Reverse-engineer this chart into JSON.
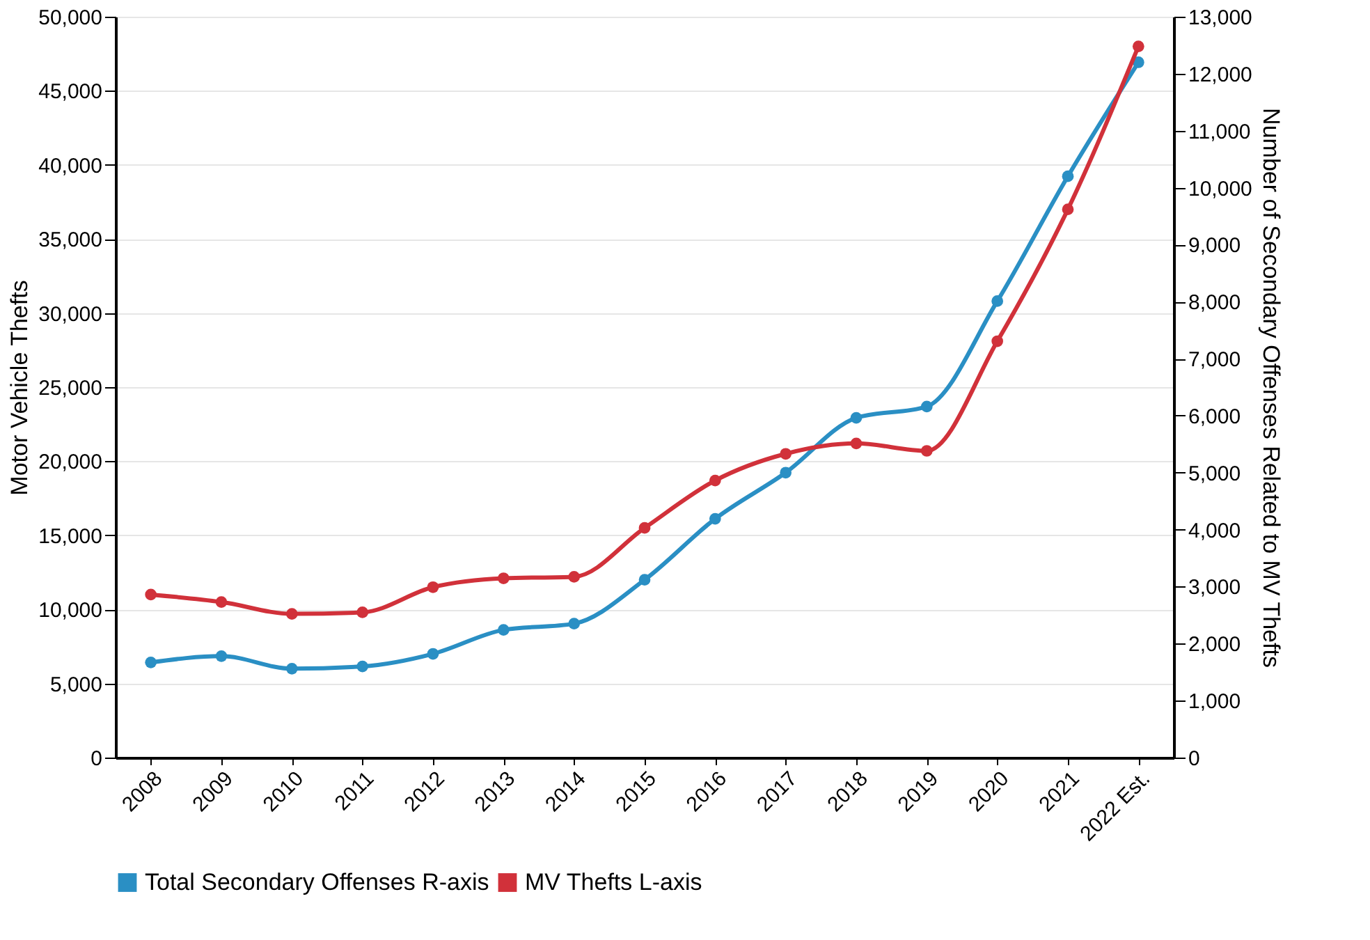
{
  "chart_data": {
    "type": "line",
    "xlabel": null,
    "ylabel": "Motor Vehicle Thefts",
    "y2label": "Number of Secondary Offenses Related to MV Thefts",
    "categories": [
      "2008",
      "2009",
      "2010",
      "2011",
      "2012",
      "2013",
      "2014",
      "2015",
      "2016",
      "2017",
      "2018",
      "2019",
      "2020",
      "2021",
      "2022 Est."
    ],
    "series": [
      {
        "name": "Total Secondary Offenses R-axis",
        "color": "#2a8fc4",
        "axis": "y2",
        "values": [
          1670,
          1780,
          1560,
          1600,
          1820,
          2240,
          2350,
          3120,
          4190,
          5000,
          5960,
          6160,
          8010,
          10200,
          12200
        ]
      },
      {
        "name": "MV Thefts L-axis",
        "color": "#d1313a",
        "values": [
          11000,
          10500,
          9700,
          9800,
          11500,
          12100,
          12200,
          15500,
          18700,
          20500,
          21200,
          20700,
          28100,
          37000,
          48000
        ]
      }
    ],
    "ylim": [
      0,
      50000
    ],
    "yticks": [
      0,
      {
        "value": 5000,
        "label": "5,000"
      },
      {
        "value": 10000,
        "label": "10,000"
      },
      {
        "value": 15000,
        "label": "15,000"
      },
      {
        "value": 20000,
        "label": "20,000"
      },
      {
        "value": 25000,
        "label": "25,000"
      },
      {
        "value": 30000,
        "label": "30,000"
      },
      {
        "value": 35000,
        "label": "35,000"
      },
      {
        "value": 40000,
        "label": "40,000"
      },
      {
        "value": 45000,
        "label": "45,000"
      },
      {
        "value": 50000,
        "label": "50,000"
      }
    ],
    "y2lim": [
      0,
      13000
    ],
    "y2ticks": [
      0,
      {
        "value": 1000,
        "label": "1,000"
      },
      {
        "value": 2000,
        "label": "2,000"
      },
      {
        "value": 3000,
        "label": "3,000"
      },
      {
        "value": 4000,
        "label": "4,000"
      },
      {
        "value": 5000,
        "label": "5,000"
      },
      {
        "value": 6000,
        "label": "6,000"
      },
      {
        "value": 7000,
        "label": "7,000"
      },
      {
        "value": 8000,
        "label": "8,000"
      },
      {
        "value": 9000,
        "label": "9,000"
      },
      {
        "value": 10000,
        "label": "10,000"
      },
      {
        "value": 11000,
        "label": "11,000"
      },
      {
        "value": 12000,
        "label": "12,000"
      },
      {
        "value": 13000,
        "label": "13,000"
      }
    ],
    "grid": "y",
    "legend": "bottom left",
    "marker": "circle",
    "line_style": "solid"
  }
}
